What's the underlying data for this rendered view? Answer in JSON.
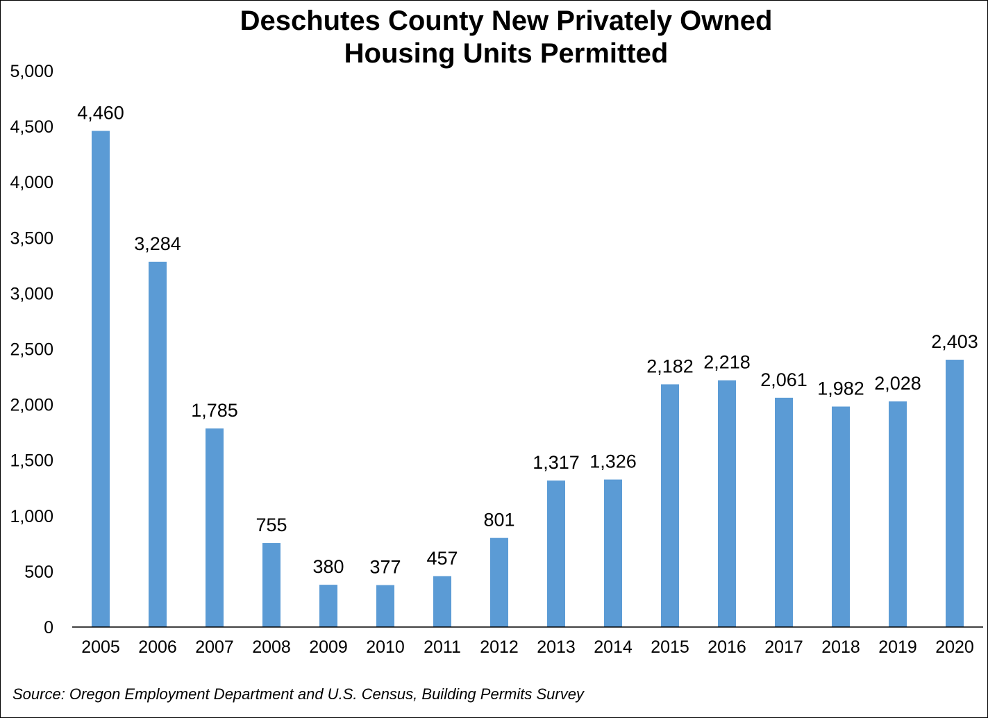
{
  "chart_data": {
    "type": "bar",
    "title_lines": [
      "Deschutes County New Privately Owned",
      "Housing Units Permitted"
    ],
    "categories": [
      "2005",
      "2006",
      "2007",
      "2008",
      "2009",
      "2010",
      "2011",
      "2012",
      "2013",
      "2014",
      "2015",
      "2016",
      "2017",
      "2018",
      "2019",
      "2020"
    ],
    "values": [
      4460,
      3284,
      1785,
      755,
      380,
      377,
      457,
      801,
      1317,
      1326,
      2182,
      2218,
      2061,
      1982,
      2028,
      2403
    ],
    "data_labels": [
      "4,460",
      "3,284",
      "1,785",
      "755",
      "380",
      "377",
      "457",
      "801",
      "1,317",
      "1,326",
      "2,182",
      "2,218",
      "2,061",
      "1,982",
      "2,028",
      "2,403"
    ],
    "y_ticks": [
      0,
      500,
      1000,
      1500,
      2000,
      2500,
      3000,
      3500,
      4000,
      4500,
      5000
    ],
    "y_tick_labels": [
      "0",
      "500",
      "1,000",
      "1,500",
      "2,000",
      "2,500",
      "3,000",
      "3,500",
      "4,000",
      "4,500",
      "5,000"
    ],
    "ylim": [
      0,
      5000
    ],
    "xlabel": "",
    "ylabel": "",
    "grid": false,
    "legend": "none",
    "bar_color": "#5B9BD5",
    "source": "Source: Oregon Employment Department and U.S. Census, Building Permits Survey"
  }
}
